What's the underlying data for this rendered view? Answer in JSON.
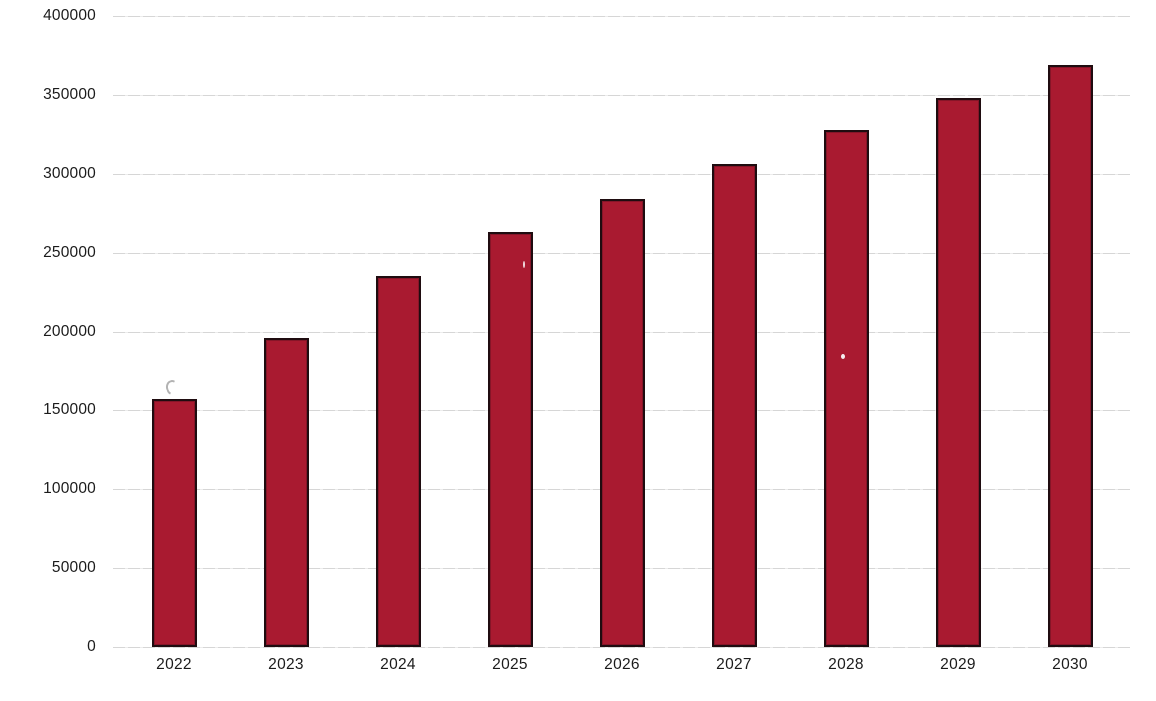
{
  "chart_data": {
    "type": "bar",
    "title": "",
    "xlabel": "",
    "ylabel": "",
    "categories": [
      "2022",
      "2023",
      "2024",
      "2025",
      "2026",
      "2027",
      "2028",
      "2029",
      "2030"
    ],
    "values": [
      157000,
      196000,
      235000,
      263000,
      284000,
      306000,
      328000,
      348000,
      369000
    ],
    "ylim": [
      0,
      400000
    ],
    "ytick_step": 50000,
    "yticks": [
      "0",
      "50000",
      "100000",
      "150000",
      "200000",
      "250000",
      "300000",
      "350000",
      "400000"
    ],
    "grid": true,
    "legend": false,
    "colors": {
      "bar_fill": "#a91a30",
      "bar_border": "#1f0c10",
      "gridline": "#d6d6d6",
      "axis_text": "#1b1b1b",
      "background": "#ffffff"
    }
  }
}
